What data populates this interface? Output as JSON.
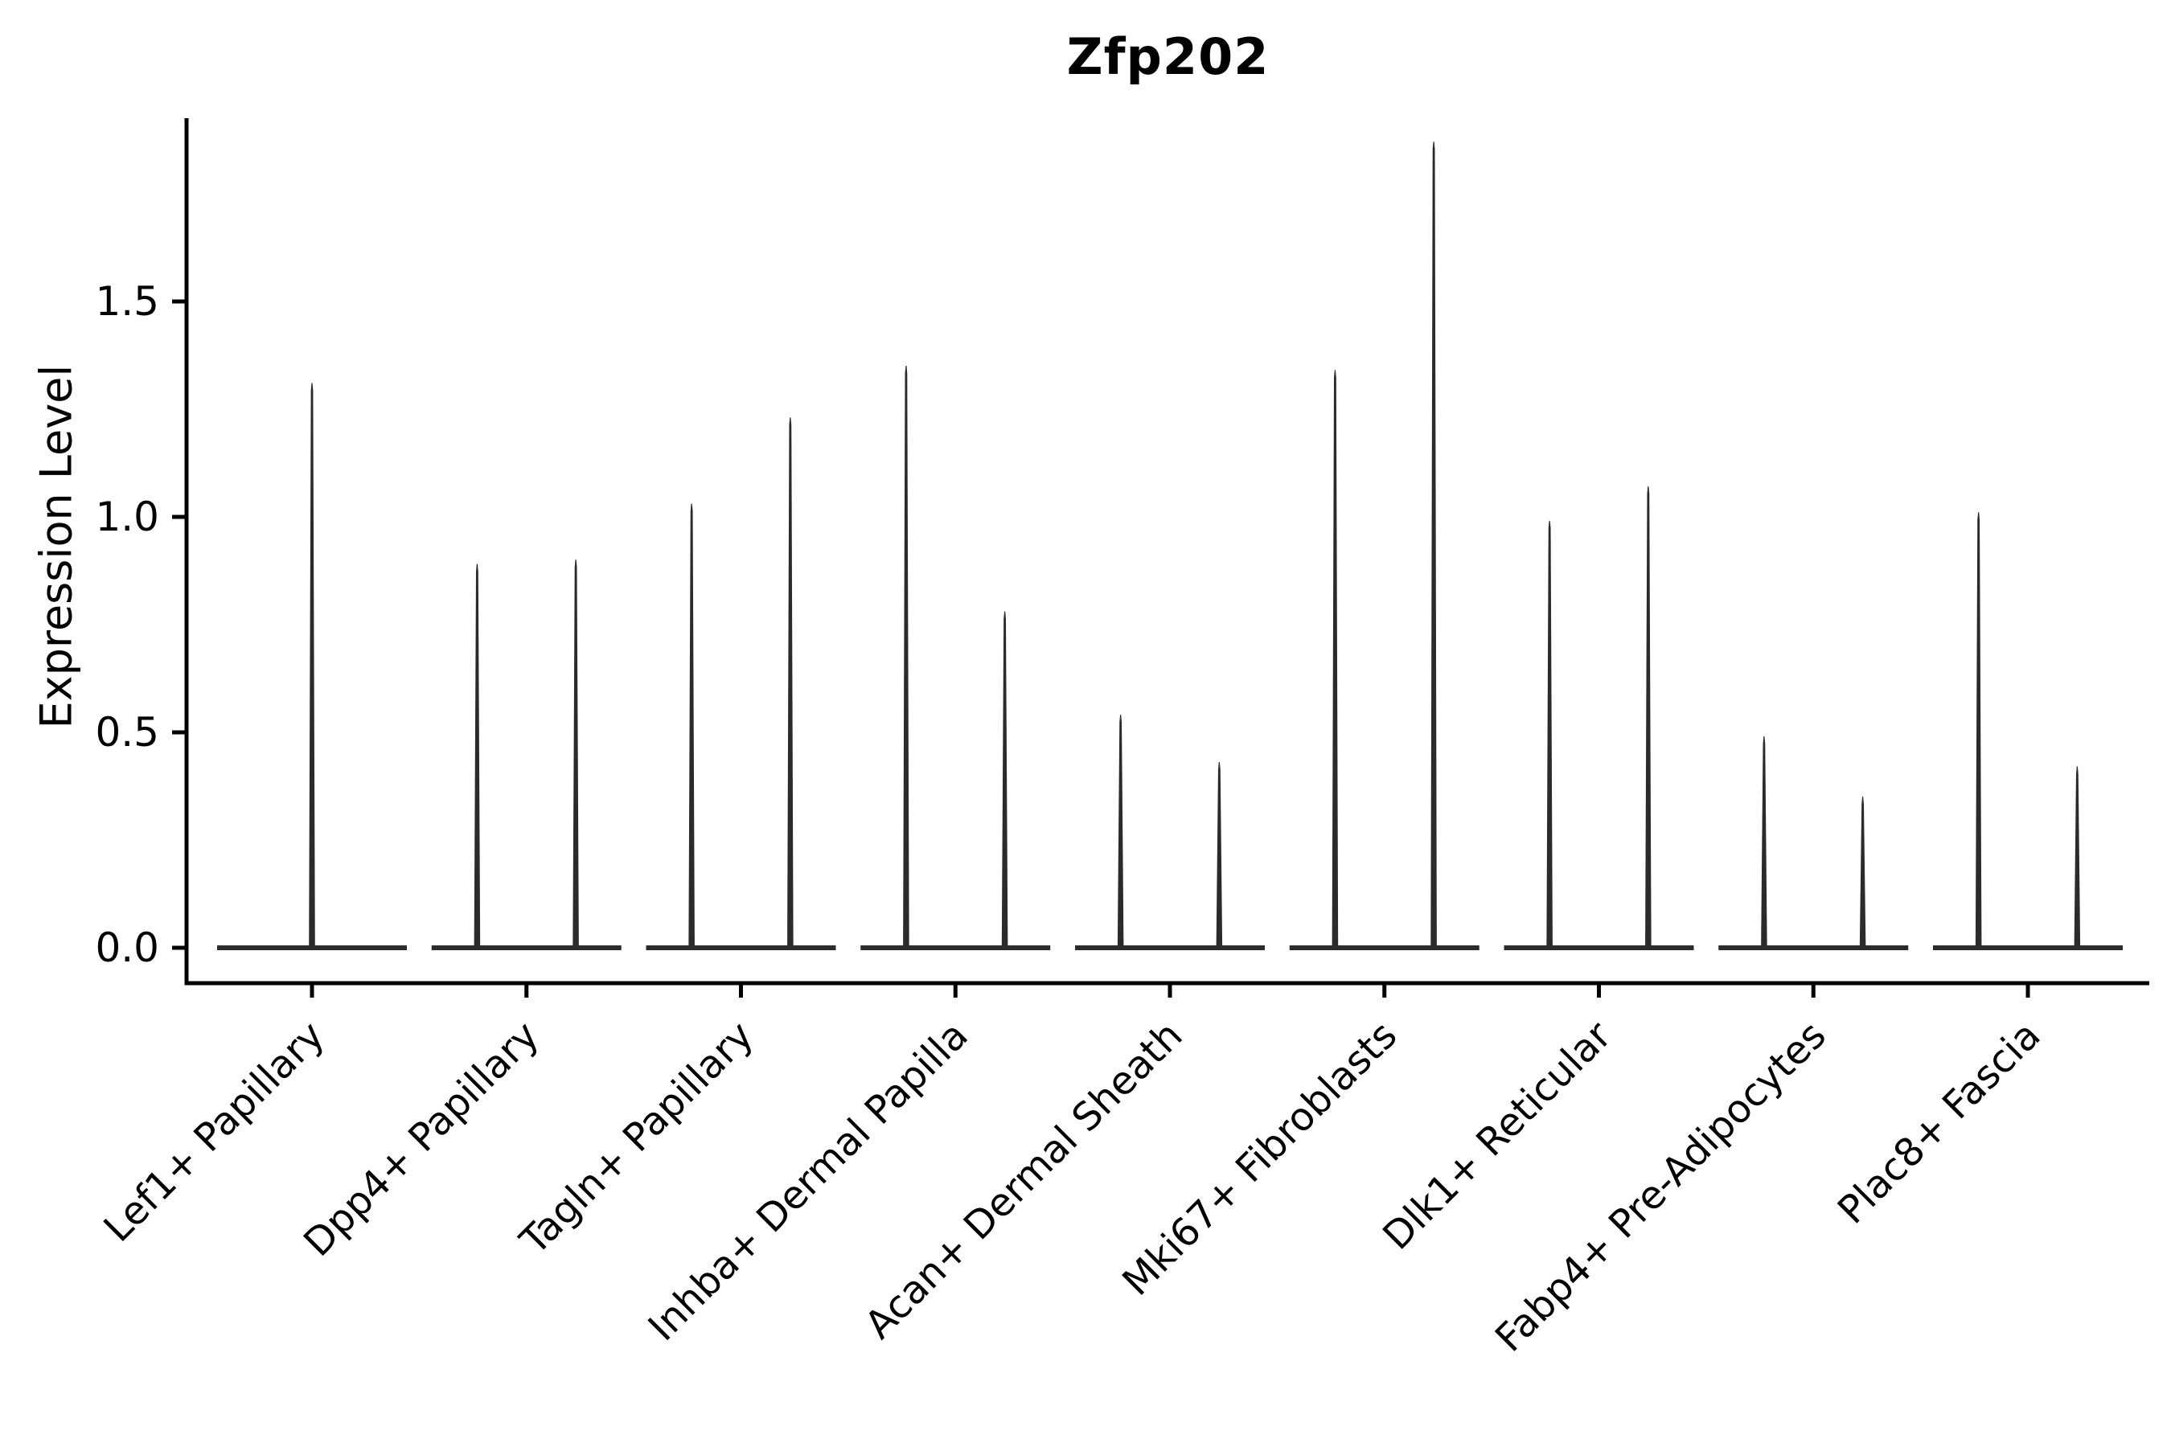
{
  "chart_data": {
    "type": "violin",
    "title": "Zfp202",
    "ylabel": "Expression Level",
    "xlabel": "",
    "yticks": [
      0.0,
      0.5,
      1.0,
      1.5
    ],
    "ylim": [
      -0.08,
      1.93
    ],
    "baseline_value": 0.0,
    "grid": false,
    "legend": "none",
    "violin_color": "#2b2b2b",
    "axis_color": "#000000",
    "categories": [
      {
        "label": "Lef1+ Papillary",
        "violins": [
          {
            "offset": 0.0,
            "max": 1.31
          }
        ]
      },
      {
        "label": "Dpp4+ Papillary",
        "violins": [
          {
            "offset": -0.23,
            "max": 0.89
          },
          {
            "offset": 0.23,
            "max": 0.9
          }
        ]
      },
      {
        "label": "Tagln+ Papillary",
        "violins": [
          {
            "offset": -0.23,
            "max": 1.03
          },
          {
            "offset": 0.23,
            "max": 1.23
          }
        ]
      },
      {
        "label": "Inhba+ Dermal Papilla",
        "violins": [
          {
            "offset": -0.23,
            "max": 1.35
          },
          {
            "offset": 0.23,
            "max": 0.78
          }
        ]
      },
      {
        "label": "Acan+ Dermal Sheath",
        "violins": [
          {
            "offset": -0.23,
            "max": 0.54
          },
          {
            "offset": 0.23,
            "max": 0.43
          }
        ]
      },
      {
        "label": "Mki67+ Fibroblasts",
        "violins": [
          {
            "offset": -0.23,
            "max": 1.34
          },
          {
            "offset": 0.23,
            "max": 1.87
          }
        ]
      },
      {
        "label": "Dlk1+ Reticular",
        "violins": [
          {
            "offset": -0.23,
            "max": 0.99
          },
          {
            "offset": 0.23,
            "max": 1.07
          }
        ]
      },
      {
        "label": "Fabp4+ Pre-Adipocytes",
        "violins": [
          {
            "offset": -0.23,
            "max": 0.49
          },
          {
            "offset": 0.23,
            "max": 0.35
          }
        ]
      },
      {
        "label": "Plac8+ Fascia",
        "violins": [
          {
            "offset": -0.23,
            "max": 1.01
          },
          {
            "offset": 0.23,
            "max": 0.42
          }
        ]
      }
    ]
  }
}
